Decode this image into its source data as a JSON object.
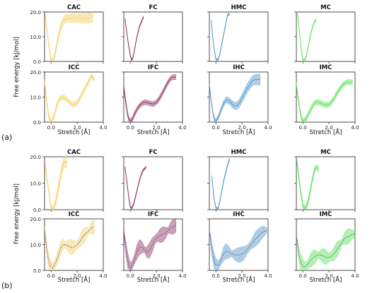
{
  "figure": {
    "xlabel": "Stretch [Å]",
    "ylabel": "Free energy [kJ/mol]",
    "part_labels": [
      "(a)",
      "(b)"
    ],
    "colors": {
      "yellow": "#f5cf61",
      "purple": "#8c2e5e",
      "blue": "#4d93c7",
      "green": "#55e14d"
    }
  },
  "chart_data": [
    {
      "type": "line",
      "panel": "a",
      "row": 0,
      "col": 0,
      "title": "CAC",
      "color": "yellow",
      "band": "wide-right",
      "xlim": [
        -0.5,
        4.0
      ],
      "ylim": [
        0,
        20
      ],
      "yticks": [
        "0.0",
        "10.0",
        "20.0"
      ],
      "xticks": [],
      "x": [
        -0.45,
        -0.3,
        -0.15,
        0,
        0.15,
        0.3,
        0.45,
        0.6,
        0.8,
        1.0,
        1.3,
        1.6,
        2.0,
        2.4,
        2.8,
        3.2
      ],
      "y": [
        19,
        12,
        5,
        0.5,
        0.5,
        3,
        7,
        11,
        15,
        17,
        17.5,
        17.5,
        17.5,
        17.5,
        17.5,
        18
      ]
    },
    {
      "type": "line",
      "panel": "a",
      "row": 0,
      "col": 1,
      "title": "FC",
      "color": "purple",
      "band": "thin",
      "xlim": [
        -0.5,
        4.0
      ],
      "ylim": [
        0,
        20
      ],
      "yticks": [],
      "xticks": [],
      "x": [
        -0.4,
        -0.3,
        -0.2,
        -0.1,
        0,
        0.1,
        0.2,
        0.3,
        0.4,
        0.55,
        0.7,
        0.85,
        1.0
      ],
      "y": [
        17,
        13,
        9,
        5.5,
        2.5,
        0.5,
        1.5,
        4,
        7,
        11,
        14,
        16,
        18
      ]
    },
    {
      "type": "line",
      "panel": "a",
      "row": 0,
      "col": 2,
      "title": "HMC",
      "color": "blue",
      "band": "thin",
      "xlim": [
        -0.5,
        4.0
      ],
      "ylim": [
        0,
        20
      ],
      "yticks": [],
      "xticks": [],
      "x": [
        -0.35,
        -0.25,
        -0.1,
        0,
        0.15,
        0.3,
        0.45,
        0.6,
        0.75,
        0.9,
        1.05
      ],
      "y": [
        16.5,
        10,
        4,
        1,
        0.5,
        3,
        7,
        11,
        15,
        19,
        19
      ]
    },
    {
      "type": "line",
      "panel": "a",
      "row": 0,
      "col": 3,
      "title": "MC",
      "color": "green",
      "band": "thin",
      "xlim": [
        -0.5,
        4.0
      ],
      "ylim": [
        0,
        20
      ],
      "yticks": [],
      "xticks": [],
      "x": [
        -0.4,
        -0.3,
        -0.2,
        -0.1,
        0,
        0.15,
        0.3,
        0.45,
        0.6,
        0.8,
        1.0
      ],
      "y": [
        19.5,
        14,
        9,
        4,
        0.5,
        0.5,
        3,
        7,
        11,
        15,
        17
      ]
    },
    {
      "type": "line",
      "panel": "a",
      "row": 1,
      "col": 0,
      "title": "ICC",
      "color": "yellow",
      "band": "medium",
      "xlim": [
        -0.5,
        4.0
      ],
      "ylim": [
        0,
        20
      ],
      "yticks": [
        "0.0",
        "10.0",
        "20.0"
      ],
      "xticks": [
        "0.0",
        "2.0",
        "4.0"
      ],
      "x": [
        -0.5,
        -0.35,
        -0.2,
        -0.1,
        0,
        0.15,
        0.3,
        0.5,
        0.7,
        0.9,
        1.1,
        1.3,
        1.5,
        1.7,
        1.9,
        2.1,
        2.3,
        2.5,
        2.7,
        2.9,
        3.1,
        3.3
      ],
      "y": [
        16,
        9,
        3,
        0.8,
        0.3,
        1,
        4,
        7.5,
        9.5,
        10,
        9.5,
        8.5,
        7.5,
        7,
        7.3,
        8.5,
        10.5,
        12.5,
        14.5,
        16.5,
        18.5,
        17
      ]
    },
    {
      "type": "line",
      "panel": "a",
      "row": 1,
      "col": 1,
      "title": "IFC",
      "color": "purple",
      "band": "medium",
      "xlim": [
        -0.5,
        4.0
      ],
      "ylim": [
        0,
        20
      ],
      "yticks": [],
      "xticks": [
        "0.0",
        "2.0",
        "4.0"
      ],
      "x": [
        -0.5,
        -0.35,
        -0.2,
        -0.1,
        0,
        0.15,
        0.3,
        0.5,
        0.7,
        0.9,
        1.1,
        1.3,
        1.5,
        1.7,
        1.9,
        2.1,
        2.3,
        2.5,
        2.7,
        2.9,
        3.1,
        3.3,
        3.5
      ],
      "y": [
        14,
        8,
        3,
        1,
        0.5,
        1,
        3,
        5,
        6.5,
        7.5,
        8,
        7.8,
        7.5,
        7.2,
        7.5,
        8.5,
        10,
        12,
        14,
        16,
        17.5,
        18,
        18
      ]
    },
    {
      "type": "line",
      "panel": "a",
      "row": 1,
      "col": 2,
      "title": "IHC",
      "color": "blue",
      "band": "wide-right",
      "xlim": [
        -0.5,
        4.0
      ],
      "ylim": [
        0,
        20
      ],
      "yticks": [],
      "xticks": [
        "0.0",
        "2.0",
        "4.0"
      ],
      "x": [
        -0.5,
        -0.35,
        -0.2,
        -0.1,
        0,
        0.2,
        0.4,
        0.6,
        0.8,
        1.0,
        1.2,
        1.4,
        1.6,
        1.8,
        2.0,
        2.2,
        2.4,
        2.6,
        2.8,
        3.0,
        3.2,
        3.4
      ],
      "y": [
        15,
        8,
        3,
        1,
        0.4,
        2,
        5,
        7.5,
        9,
        8.5,
        7.5,
        6.5,
        6.5,
        7.5,
        9.5,
        11.5,
        13.5,
        15,
        16.5,
        17,
        17,
        17
      ]
    },
    {
      "type": "line",
      "panel": "a",
      "row": 1,
      "col": 3,
      "title": "IMC",
      "color": "green",
      "band": "medium",
      "xlim": [
        -0.5,
        4.0
      ],
      "ylim": [
        0,
        20
      ],
      "yticks": [],
      "xticks": [
        "0.0",
        "2.0",
        "4.0"
      ],
      "x": [
        -0.5,
        -0.35,
        -0.2,
        -0.1,
        0,
        0.2,
        0.4,
        0.6,
        0.8,
        1.0,
        1.2,
        1.4,
        1.6,
        1.8,
        2.0,
        2.2,
        2.4,
        2.6,
        2.8,
        3.0,
        3.2,
        3.4,
        3.6,
        3.8
      ],
      "y": [
        15,
        9,
        4,
        1.2,
        0.5,
        1,
        3,
        5,
        7,
        8,
        8,
        7.5,
        7,
        6.8,
        7,
        8,
        9.5,
        11.5,
        13,
        14.5,
        15.5,
        16,
        16,
        16
      ]
    },
    {
      "type": "line",
      "panel": "b",
      "row": 0,
      "col": 0,
      "title": "CAC",
      "color": "yellow",
      "band": "wide-right",
      "xlim": [
        -0.5,
        4.0
      ],
      "ylim": [
        0,
        20
      ],
      "yticks": [
        "0.0",
        "10.0",
        "20.0"
      ],
      "xticks": [],
      "x": [
        -0.45,
        -0.35,
        -0.2,
        -0.1,
        0,
        0.1,
        0.25,
        0.4,
        0.55,
        0.7,
        0.85,
        1.0,
        1.2
      ],
      "y": [
        17,
        13,
        8,
        4,
        1,
        0.3,
        1,
        4,
        8,
        12,
        16,
        18,
        18
      ]
    },
    {
      "type": "line",
      "panel": "b",
      "row": 0,
      "col": 1,
      "title": "FC",
      "color": "purple",
      "band": "thin",
      "xlim": [
        -0.5,
        4.0
      ],
      "ylim": [
        0,
        20
      ],
      "yticks": [],
      "xticks": [],
      "x": [
        -0.4,
        -0.3,
        -0.2,
        -0.1,
        0,
        0.1,
        0.25,
        0.4,
        0.55,
        0.7,
        0.85,
        1.0,
        1.2
      ],
      "y": [
        16,
        12,
        8,
        4,
        1,
        0.5,
        2,
        5,
        8,
        11,
        13.5,
        15,
        16
      ]
    },
    {
      "type": "line",
      "panel": "b",
      "row": 0,
      "col": 2,
      "title": "HMC",
      "color": "blue",
      "band": "thin",
      "xlim": [
        -0.5,
        4.0
      ],
      "ylim": [
        0,
        20
      ],
      "yticks": [],
      "xticks": [],
      "x": [
        -0.3,
        -0.2,
        -0.1,
        0,
        0.15,
        0.3,
        0.45,
        0.6,
        0.75,
        0.9,
        1.05
      ],
      "y": [
        12.5,
        7,
        3,
        0.8,
        0.3,
        3,
        7,
        11,
        14,
        17,
        19
      ]
    },
    {
      "type": "line",
      "panel": "b",
      "row": 0,
      "col": 3,
      "title": "MC",
      "color": "green",
      "band": "medium",
      "xlim": [
        -0.5,
        4.0
      ],
      "ylim": [
        0,
        20
      ],
      "yticks": [],
      "xticks": [],
      "x": [
        -0.45,
        -0.3,
        -0.15,
        0,
        0.15,
        0.3,
        0.45,
        0.6,
        0.75,
        0.9,
        1.05,
        1.2
      ],
      "y": [
        18,
        12,
        6,
        1.5,
        0.5,
        1.5,
        4,
        8,
        12,
        15,
        16,
        15.5
      ]
    },
    {
      "type": "line",
      "panel": "b",
      "row": 1,
      "col": 0,
      "title": "ICC",
      "color": "yellow",
      "band": "wide",
      "dashed": true,
      "xlim": [
        -0.5,
        4.0
      ],
      "ylim": [
        0,
        20
      ],
      "yticks": [
        "0.0",
        "10.0",
        "20.0"
      ],
      "xticks": [
        "0.0",
        "2.0",
        "4.0"
      ],
      "x": [
        -0.5,
        -0.35,
        -0.2,
        -0.05,
        0.1,
        0.3,
        0.5,
        0.7,
        0.9,
        1.1,
        1.3,
        1.5,
        1.7,
        1.9,
        2.1,
        2.3,
        2.5,
        2.7,
        2.9,
        3.1,
        3.3
      ],
      "y": [
        16,
        9,
        4,
        1.5,
        1,
        2.5,
        5,
        8,
        10,
        10,
        9.5,
        9,
        9,
        9.5,
        10.5,
        12,
        13.5,
        14.5,
        15.5,
        16.5,
        17
      ]
    },
    {
      "type": "line",
      "panel": "b",
      "row": 1,
      "col": 1,
      "title": "IFC",
      "color": "purple",
      "band": "wide",
      "dashed": true,
      "xlim": [
        -0.5,
        4.0
      ],
      "ylim": [
        0,
        20
      ],
      "yticks": [],
      "xticks": [
        "0.0",
        "2.0",
        "4.0"
      ],
      "x": [
        -0.5,
        -0.35,
        -0.2,
        -0.05,
        0.1,
        0.3,
        0.5,
        0.7,
        0.9,
        1.1,
        1.3,
        1.5,
        1.7,
        1.9,
        2.1,
        2.3,
        2.5,
        2.7,
        2.9,
        3.1,
        3.3,
        3.5
      ],
      "y": [
        15,
        9,
        4,
        1,
        1.5,
        4,
        7,
        9,
        9,
        8,
        7,
        8,
        10,
        12,
        13,
        13.5,
        14,
        14.5,
        15.5,
        16.5,
        17,
        17.5
      ]
    },
    {
      "type": "line",
      "panel": "b",
      "row": 1,
      "col": 2,
      "title": "IHC",
      "color": "blue",
      "band": "wide",
      "dashed": true,
      "xlim": [
        -0.5,
        4.0
      ],
      "ylim": [
        0,
        20
      ],
      "yticks": [],
      "xticks": [
        "0.0",
        "2.0",
        "4.0"
      ],
      "x": [
        -0.45,
        -0.3,
        -0.15,
        0,
        0.2,
        0.4,
        0.6,
        0.8,
        1.0,
        1.2,
        1.5,
        1.8,
        2.1,
        2.4,
        2.7,
        3.0,
        3.3,
        3.6,
        3.9
      ],
      "y": [
        14,
        8,
        4,
        2,
        2,
        4,
        6.5,
        7.5,
        7,
        6.5,
        6,
        6,
        6.5,
        8,
        10,
        12,
        13.5,
        15,
        15.5
      ]
    },
    {
      "type": "line",
      "panel": "b",
      "row": 1,
      "col": 3,
      "title": "IMC",
      "color": "green",
      "band": "wide",
      "dashed": true,
      "xlim": [
        -0.5,
        4.0
      ],
      "ylim": [
        0,
        20
      ],
      "yticks": [],
      "xticks": [
        "0.0",
        "2.0",
        "4.0"
      ],
      "x": [
        -0.45,
        -0.3,
        -0.15,
        0,
        0.2,
        0.4,
        0.6,
        0.8,
        1.0,
        1.2,
        1.4,
        1.6,
        1.8,
        2.0,
        2.2,
        2.4,
        2.6,
        2.8,
        3.0,
        3.2,
        3.4,
        3.6,
        3.8,
        4.0
      ],
      "y": [
        12,
        6,
        3,
        1.5,
        1.5,
        2.5,
        4,
        5,
        5.5,
        6,
        6,
        5.5,
        5,
        5,
        5.5,
        6.5,
        8,
        9.5,
        11,
        12.5,
        13,
        13.5,
        14,
        14
      ]
    }
  ]
}
